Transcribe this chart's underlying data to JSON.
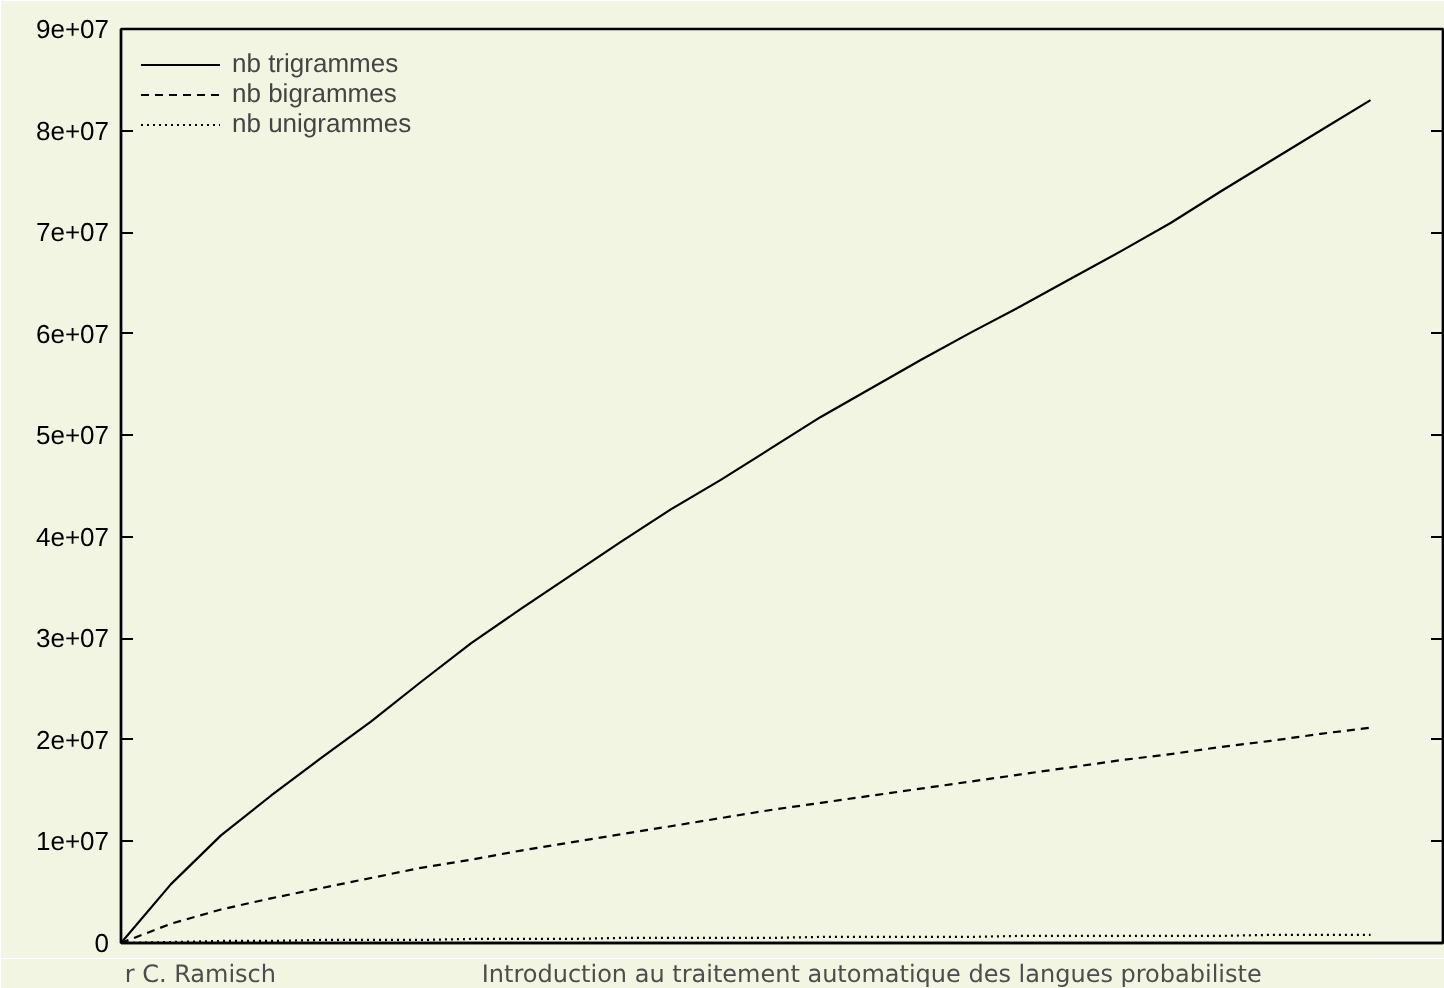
{
  "chart_data": {
    "type": "line",
    "categories": [
      null,
      null,
      null,
      null,
      null,
      null,
      null,
      null,
      null,
      null,
      null,
      null,
      null,
      null,
      null,
      null,
      null,
      null,
      null,
      null,
      null,
      null,
      null,
      null,
      null,
      null
    ],
    "series": [
      {
        "name": "nb trigrammes",
        "color": "#000000",
        "line_style": "solid",
        "values": [
          0,
          5800000,
          10600000,
          14500000,
          18200000,
          21800000,
          25700000,
          29500000,
          32900000,
          36200000,
          39500000,
          42700000,
          45600000,
          48700000,
          51800000,
          54600000,
          57400000,
          60100000,
          62700000,
          65400000,
          68100000,
          70900000,
          74000000,
          77000000,
          80000000,
          83000000
        ]
      },
      {
        "name": "nb bigrammes",
        "color": "#000000",
        "line_style": "dashed",
        "values": [
          0,
          1900000,
          3300000,
          4400000,
          5400000,
          6400000,
          7400000,
          8200000,
          9100000,
          9900000,
          10700000,
          11500000,
          12300000,
          13100000,
          13800000,
          14500000,
          15200000,
          15900000,
          16600000,
          17300000,
          18000000,
          18600000,
          19300000,
          19900000,
          20600000,
          21200000
        ]
      },
      {
        "name": "nb unigrammes",
        "color": "#000000",
        "line_style": "dotted",
        "values": [
          0,
          100000,
          200000,
          200000,
          300000,
          300000,
          300000,
          400000,
          400000,
          400000,
          500000,
          500000,
          500000,
          500000,
          600000,
          600000,
          600000,
          600000,
          700000,
          700000,
          700000,
          700000,
          700000,
          800000,
          800000,
          800000
        ]
      }
    ],
    "ylim": [
      0,
      90000000
    ],
    "yticks": [
      0,
      {
        "value": 10000000,
        "label": "1e+07"
      },
      {
        "value": 20000000,
        "label": "2e+07"
      },
      {
        "value": 30000000,
        "label": "3e+07"
      },
      {
        "value": 40000000,
        "label": "4e+07"
      },
      {
        "value": 50000000,
        "label": "5e+07"
      },
      {
        "value": 60000000,
        "label": "6e+07"
      },
      {
        "value": 70000000,
        "label": "7e+07"
      },
      {
        "value": 80000000,
        "label": "8e+07"
      },
      {
        "value": 90000000,
        "label": "9e+07"
      }
    ],
    "tick_labels": "y",
    "legend": "top left",
    "annotations": [
      "r C. Ramisch",
      "Introduction au traitement automatique des langues probabiliste"
    ]
  }
}
